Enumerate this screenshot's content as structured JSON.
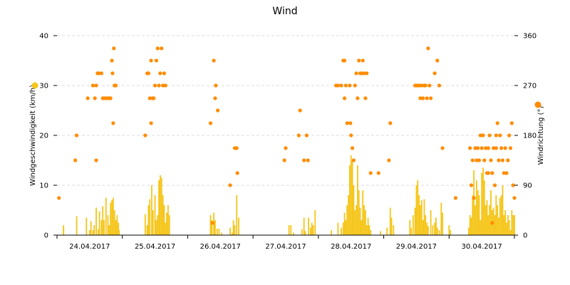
{
  "chart_data": {
    "type": "bar+scatter",
    "title": "Wind",
    "y_left": {
      "label": "Windgeschwindigkeit (km/h)",
      "range": [
        0,
        40
      ],
      "ticks": [
        "0",
        "10",
        "20",
        "30",
        "40"
      ]
    },
    "y_right": {
      "label": "Windrichtung (°)",
      "range": [
        0,
        360
      ],
      "ticks": [
        "0",
        "90",
        "180",
        "270",
        "360"
      ]
    },
    "x_axis": {
      "range_days": [
        0,
        7
      ],
      "tick_labels": [
        "24.04.2017",
        "25.04.2017",
        "26.04.2017",
        "27.04.2017",
        "28.04.2017",
        "29.04.2017",
        "30.04.2017"
      ]
    },
    "grid": "horizontal-dashed",
    "series": [
      {
        "name": "Windgeschwindigkeit (km/h)",
        "type": "bar",
        "color": "#f5c518",
        "bars": [
          [
            0.1,
            2
          ],
          [
            0.1,
            1.5
          ],
          [
            0.3,
            3.8
          ],
          [
            0.45,
            3.5
          ],
          [
            0.5,
            1
          ],
          [
            0.52,
            2.8
          ],
          [
            0.55,
            1
          ],
          [
            0.57,
            2
          ],
          [
            0.6,
            5.5
          ],
          [
            0.63,
            1.2
          ],
          [
            0.65,
            4.8
          ],
          [
            0.68,
            3
          ],
          [
            0.7,
            5.8
          ],
          [
            0.72,
            3
          ],
          [
            0.75,
            7.5
          ],
          [
            0.78,
            4
          ],
          [
            0.8,
            2
          ],
          [
            0.82,
            6.5
          ],
          [
            0.84,
            7
          ],
          [
            0.86,
            7.5
          ],
          [
            0.88,
            5
          ],
          [
            0.9,
            3
          ],
          [
            0.92,
            4
          ],
          [
            0.94,
            2.5
          ],
          [
            0.95,
            1
          ],
          [
            1.35,
            4.2
          ],
          [
            1.38,
            2
          ],
          [
            1.4,
            6
          ],
          [
            1.42,
            7.2
          ],
          [
            1.45,
            10
          ],
          [
            1.47,
            5
          ],
          [
            1.5,
            8
          ],
          [
            1.52,
            3
          ],
          [
            1.54,
            4
          ],
          [
            1.56,
            11
          ],
          [
            1.58,
            12
          ],
          [
            1.6,
            11.5
          ],
          [
            1.62,
            8
          ],
          [
            1.64,
            6
          ],
          [
            1.66,
            2.5
          ],
          [
            1.68,
            4.5
          ],
          [
            1.7,
            6
          ],
          [
            1.72,
            4
          ],
          [
            2.35,
            4
          ],
          [
            2.37,
            3
          ],
          [
            2.4,
            4.5
          ],
          [
            2.42,
            3
          ],
          [
            2.45,
            1.3
          ],
          [
            2.48,
            1.3
          ],
          [
            2.52,
            0.5
          ],
          [
            2.65,
            1.5
          ],
          [
            2.68,
            0.5
          ],
          [
            2.7,
            3
          ],
          [
            2.72,
            2
          ],
          [
            2.75,
            8
          ],
          [
            2.78,
            3.5
          ],
          [
            3.55,
            2
          ],
          [
            3.58,
            2
          ],
          [
            3.62,
            0.5
          ],
          [
            3.75,
            1.2
          ],
          [
            3.78,
            3.5
          ],
          [
            3.8,
            0.8
          ],
          [
            3.85,
            3.5
          ],
          [
            3.88,
            1.5
          ],
          [
            3.9,
            2.5
          ],
          [
            3.92,
            2
          ],
          [
            3.95,
            5
          ],
          [
            4.2,
            1
          ],
          [
            4.3,
            2.5
          ],
          [
            4.35,
            1.5
          ],
          [
            4.38,
            2.5
          ],
          [
            4.4,
            4.5
          ],
          [
            4.42,
            3
          ],
          [
            4.44,
            6
          ],
          [
            4.46,
            8
          ],
          [
            4.48,
            14
          ],
          [
            4.5,
            16
          ],
          [
            4.52,
            15
          ],
          [
            4.54,
            10
          ],
          [
            4.56,
            5
          ],
          [
            4.58,
            6
          ],
          [
            4.6,
            14
          ],
          [
            4.62,
            9
          ],
          [
            4.64,
            5.5
          ],
          [
            4.66,
            3
          ],
          [
            4.68,
            9
          ],
          [
            4.7,
            6
          ],
          [
            4.72,
            5
          ],
          [
            4.74,
            2
          ],
          [
            4.76,
            3.5
          ],
          [
            4.78,
            2
          ],
          [
            4.8,
            1
          ],
          [
            4.95,
            0.8
          ],
          [
            5.05,
            1.5
          ],
          [
            5.1,
            5.5
          ],
          [
            5.12,
            3.5
          ],
          [
            5.15,
            2
          ],
          [
            5.4,
            3
          ],
          [
            5.42,
            1.5
          ],
          [
            5.45,
            4
          ],
          [
            5.48,
            5.5
          ],
          [
            5.5,
            10
          ],
          [
            5.52,
            11
          ],
          [
            5.54,
            8
          ],
          [
            5.56,
            6
          ],
          [
            5.58,
            7
          ],
          [
            5.6,
            3
          ],
          [
            5.62,
            7.2
          ],
          [
            5.64,
            4
          ],
          [
            5.66,
            2.5
          ],
          [
            5.68,
            1.8
          ],
          [
            5.72,
            5
          ],
          [
            5.75,
            2
          ],
          [
            5.78,
            2.5
          ],
          [
            5.8,
            3.5
          ],
          [
            5.82,
            1.5
          ],
          [
            5.85,
            1
          ],
          [
            5.88,
            6.5
          ],
          [
            5.9,
            4.5
          ],
          [
            6.0,
            2
          ],
          [
            6.02,
            1
          ],
          [
            6.3,
            1.5
          ],
          [
            6.32,
            4
          ],
          [
            6.34,
            3.5
          ],
          [
            6.36,
            8
          ],
          [
            6.38,
            13
          ],
          [
            6.4,
            6
          ],
          [
            6.42,
            11
          ],
          [
            6.44,
            9
          ],
          [
            6.46,
            8
          ],
          [
            6.48,
            3
          ],
          [
            6.5,
            12.5
          ],
          [
            6.52,
            13.5
          ],
          [
            6.54,
            11
          ],
          [
            6.56,
            6
          ],
          [
            6.58,
            7
          ],
          [
            6.6,
            4
          ],
          [
            6.62,
            6
          ],
          [
            6.64,
            9
          ],
          [
            6.66,
            5
          ],
          [
            6.68,
            5.5
          ],
          [
            6.7,
            4
          ],
          [
            6.72,
            8
          ],
          [
            6.74,
            6
          ],
          [
            6.76,
            3.5
          ],
          [
            6.78,
            7.5
          ],
          [
            6.8,
            8
          ],
          [
            6.82,
            10
          ],
          [
            6.84,
            4
          ],
          [
            6.86,
            5
          ],
          [
            6.88,
            2.5
          ],
          [
            6.9,
            4
          ],
          [
            6.92,
            3
          ],
          [
            6.94,
            1
          ],
          [
            6.96,
            5
          ],
          [
            6.98,
            4
          ],
          [
            7.0,
            4
          ]
        ]
      },
      {
        "name": "Windrichtung (°)",
        "type": "scatter",
        "color": "#ff8c00",
        "points": [
          [
            0.03,
            67
          ],
          [
            0.3,
            180
          ],
          [
            0.28,
            135
          ],
          [
            0.47,
            247
          ],
          [
            0.55,
            270
          ],
          [
            0.58,
            247
          ],
          [
            0.6,
            135
          ],
          [
            0.6,
            270
          ],
          [
            0.62,
            292
          ],
          [
            0.64,
            292
          ],
          [
            0.68,
            292
          ],
          [
            0.7,
            247
          ],
          [
            0.72,
            247
          ],
          [
            0.75,
            247
          ],
          [
            0.78,
            247
          ],
          [
            0.8,
            247
          ],
          [
            0.82,
            247
          ],
          [
            0.84,
            315
          ],
          [
            0.85,
            292
          ],
          [
            0.87,
            337
          ],
          [
            0.86,
            202
          ],
          [
            0.88,
            270
          ],
          [
            0.9,
            270
          ],
          [
            1.35,
            180
          ],
          [
            1.38,
            292
          ],
          [
            1.4,
            292
          ],
          [
            1.42,
            247
          ],
          [
            1.44,
            315
          ],
          [
            1.44,
            202
          ],
          [
            1.46,
            247
          ],
          [
            1.48,
            247
          ],
          [
            1.5,
            270
          ],
          [
            1.52,
            315
          ],
          [
            1.54,
            337
          ],
          [
            1.56,
            270
          ],
          [
            1.58,
            292
          ],
          [
            1.6,
            337
          ],
          [
            1.62,
            270
          ],
          [
            1.64,
            292
          ],
          [
            1.66,
            270
          ],
          [
            2.35,
            202
          ],
          [
            2.38,
            22
          ],
          [
            2.4,
            315
          ],
          [
            2.42,
            247
          ],
          [
            2.43,
            270
          ],
          [
            2.46,
            225
          ],
          [
            2.65,
            90
          ],
          [
            2.72,
            157
          ],
          [
            2.75,
            157
          ],
          [
            2.76,
            112
          ],
          [
            3.48,
            135
          ],
          [
            3.5,
            157
          ],
          [
            3.7,
            180
          ],
          [
            3.72,
            225
          ],
          [
            3.78,
            135
          ],
          [
            3.82,
            180
          ],
          [
            3.84,
            135
          ],
          [
            4.27,
            270
          ],
          [
            4.3,
            270
          ],
          [
            4.35,
            270
          ],
          [
            4.38,
            315
          ],
          [
            4.4,
            315
          ],
          [
            4.4,
            247
          ],
          [
            4.42,
            270
          ],
          [
            4.44,
            202
          ],
          [
            4.48,
            270
          ],
          [
            4.49,
            202
          ],
          [
            4.5,
            180
          ],
          [
            4.52,
            157
          ],
          [
            4.54,
            135
          ],
          [
            4.56,
            270
          ],
          [
            4.58,
            292
          ],
          [
            4.6,
            247
          ],
          [
            4.62,
            315
          ],
          [
            4.64,
            292
          ],
          [
            4.66,
            292
          ],
          [
            4.68,
            315
          ],
          [
            4.7,
            292
          ],
          [
            4.72,
            247
          ],
          [
            4.74,
            292
          ],
          [
            4.8,
            112
          ],
          [
            4.92,
            112
          ],
          [
            5.08,
            135
          ],
          [
            5.1,
            202
          ],
          [
            5.48,
            270
          ],
          [
            5.5,
            270
          ],
          [
            5.52,
            270
          ],
          [
            5.54,
            270
          ],
          [
            5.56,
            247
          ],
          [
            5.58,
            270
          ],
          [
            5.6,
            247
          ],
          [
            5.62,
            270
          ],
          [
            5.64,
            270
          ],
          [
            5.66,
            247
          ],
          [
            5.68,
            337
          ],
          [
            5.7,
            270
          ],
          [
            5.72,
            247
          ],
          [
            5.78,
            292
          ],
          [
            5.82,
            315
          ],
          [
            5.85,
            270
          ],
          [
            5.9,
            157
          ],
          [
            6.1,
            67
          ],
          [
            6.32,
            157
          ],
          [
            6.34,
            90
          ],
          [
            6.36,
            135
          ],
          [
            6.38,
            67
          ],
          [
            6.4,
            157
          ],
          [
            6.42,
            135
          ],
          [
            6.44,
            157
          ],
          [
            6.46,
            135
          ],
          [
            6.48,
            180
          ],
          [
            6.5,
            157
          ],
          [
            6.52,
            180
          ],
          [
            6.54,
            135
          ],
          [
            6.56,
            157
          ],
          [
            6.58,
            112
          ],
          [
            6.6,
            157
          ],
          [
            6.6,
            112
          ],
          [
            6.62,
            180
          ],
          [
            6.64,
            135
          ],
          [
            6.66,
            112
          ],
          [
            6.68,
            157
          ],
          [
            6.7,
            90
          ],
          [
            6.72,
            157
          ],
          [
            6.72,
            180
          ],
          [
            6.74,
            202
          ],
          [
            6.76,
            135
          ],
          [
            6.78,
            180
          ],
          [
            6.8,
            157
          ],
          [
            6.82,
            135
          ],
          [
            6.84,
            112
          ],
          [
            6.86,
            157
          ],
          [
            6.88,
            112
          ],
          [
            6.9,
            135
          ],
          [
            6.92,
            180
          ],
          [
            6.94,
            157
          ],
          [
            6.96,
            202
          ],
          [
            6.98,
            90
          ],
          [
            7.0,
            67
          ],
          [
            6.66,
            22
          ]
        ]
      }
    ]
  }
}
